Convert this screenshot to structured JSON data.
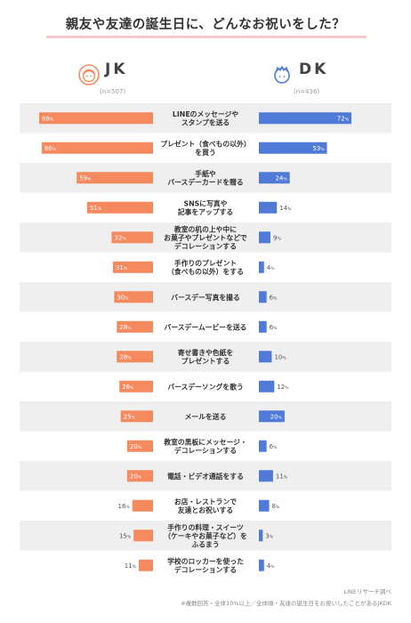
{
  "title": "親友や友達の誕生日に、どんなお祝いをした？",
  "groups": {
    "jk": {
      "label": "JK",
      "n": "(n=507)",
      "color": "#f58a5e"
    },
    "dk": {
      "label": "DK",
      "n": "(n=436)",
      "color": "#4f7ad8"
    }
  },
  "chart_data": {
    "type": "bar",
    "orientation": "horizontal-diverging",
    "categories": [
      [
        "LINEのメッセージや",
        "スタンプを送る"
      ],
      [
        "プレゼント（食べもの以外）",
        "を買う"
      ],
      [
        "手紙や",
        "バースデーカードを贈る"
      ],
      [
        "SNSに写真や",
        "記事をアップする"
      ],
      [
        "教室の机の上や中に",
        "お菓子やプレゼントなどで",
        "デコレーションする"
      ],
      [
        "手作りのプレゼント",
        "（食べもの以外）をする"
      ],
      [
        "バースデー写真を撮る"
      ],
      [
        "バースデームービーを送る"
      ],
      [
        "寄せ書きや色紙を",
        "プレゼントする"
      ],
      [
        "バースデーソングを歌う"
      ],
      [
        "メールを送る"
      ],
      [
        "教室の黒板にメッセージ・",
        "デコレーションする"
      ],
      [
        "電話・ビデオ通話をする"
      ],
      [
        "お店・レストランで",
        "友達とお祝いする"
      ],
      [
        "手作りの料理・スイーツ",
        "（ケーキやお菓子など）を",
        "ふるまう"
      ],
      [
        "学校のロッカーを使った",
        "デコレーションする"
      ]
    ],
    "series": [
      {
        "name": "JK",
        "values": [
          88,
          86,
          59,
          51,
          32,
          31,
          30,
          28,
          28,
          26,
          25,
          20,
          20,
          16,
          15,
          11
        ]
      },
      {
        "name": "DK",
        "values": [
          72,
          53,
          24,
          14,
          9,
          4,
          6,
          6,
          10,
          12,
          20,
          6,
          11,
          8,
          3,
          4
        ]
      }
    ],
    "unit": "%",
    "xlim": [
      0,
      100
    ]
  },
  "footer": {
    "source": "LINEリサーチ調べ",
    "note": "※複数回答・全体10%以上／全体順・友達の誕生日をお祝いしたことがあるJKDK"
  }
}
